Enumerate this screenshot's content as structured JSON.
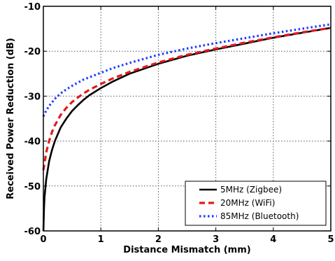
{
  "chart_data": {
    "type": "line",
    "title": "",
    "xlabel": "Distance Mismatch (mm)",
    "ylabel": "Received Power Reduction (dB)",
    "xlim": [
      0,
      5
    ],
    "ylim": [
      -60,
      -10
    ],
    "xticks": [
      "0",
      "1",
      "2",
      "3",
      "4",
      "5"
    ],
    "yticks": [
      "-60",
      "-50",
      "-40",
      "-30",
      "-20",
      "-10"
    ],
    "grid": true,
    "legend_position": "bottom-right",
    "series": [
      {
        "name": "5MHz (Zigbee)",
        "color": "#000000",
        "style": "solid",
        "x": [
          0.001,
          0.01,
          0.02,
          0.05,
          0.1,
          0.15,
          0.2,
          0.3,
          0.4,
          0.5,
          0.6,
          0.7,
          0.8,
          1.0,
          1.2,
          1.5,
          2.0,
          2.5,
          3.0,
          3.5,
          4.0,
          4.5,
          5.0
        ],
        "y": [
          -60,
          -55.5,
          -52.5,
          -48.5,
          -44.5,
          -42.0,
          -40.0,
          -37.0,
          -35.0,
          -33.3,
          -32.0,
          -30.8,
          -29.8,
          -28.2,
          -26.8,
          -25.0,
          -22.8,
          -21.0,
          -19.6,
          -18.3,
          -17.0,
          -15.9,
          -14.8
        ]
      },
      {
        "name": "20MHz (WiFi)",
        "color": "#e31a1c",
        "style": "dashed",
        "x": [
          0.0,
          0.02,
          0.05,
          0.1,
          0.15,
          0.2,
          0.3,
          0.4,
          0.5,
          0.6,
          0.7,
          0.8,
          1.0,
          1.2,
          1.5,
          2.0,
          2.5,
          3.0,
          3.5,
          4.0,
          4.5,
          5.0
        ],
        "y": [
          -46.5,
          -45.0,
          -42.5,
          -40.0,
          -38.0,
          -36.5,
          -34.2,
          -32.6,
          -31.3,
          -30.3,
          -29.4,
          -28.6,
          -27.3,
          -26.1,
          -24.6,
          -22.5,
          -20.8,
          -19.4,
          -18.1,
          -16.9,
          -15.8,
          -14.8
        ]
      },
      {
        "name": "85MHz (Bluetooth)",
        "color": "#1f3cff",
        "style": "dotted",
        "x": [
          0.0,
          0.05,
          0.1,
          0.2,
          0.3,
          0.4,
          0.5,
          0.6,
          0.7,
          0.8,
          1.0,
          1.2,
          1.5,
          2.0,
          2.5,
          3.0,
          3.5,
          4.0,
          4.5,
          5.0
        ],
        "y": [
          -34.5,
          -33.2,
          -32.2,
          -30.6,
          -29.4,
          -28.5,
          -27.7,
          -27.0,
          -26.3,
          -25.8,
          -24.8,
          -23.8,
          -22.6,
          -20.8,
          -19.4,
          -18.2,
          -17.1,
          -16.0,
          -15.0,
          -14.0
        ]
      }
    ]
  }
}
